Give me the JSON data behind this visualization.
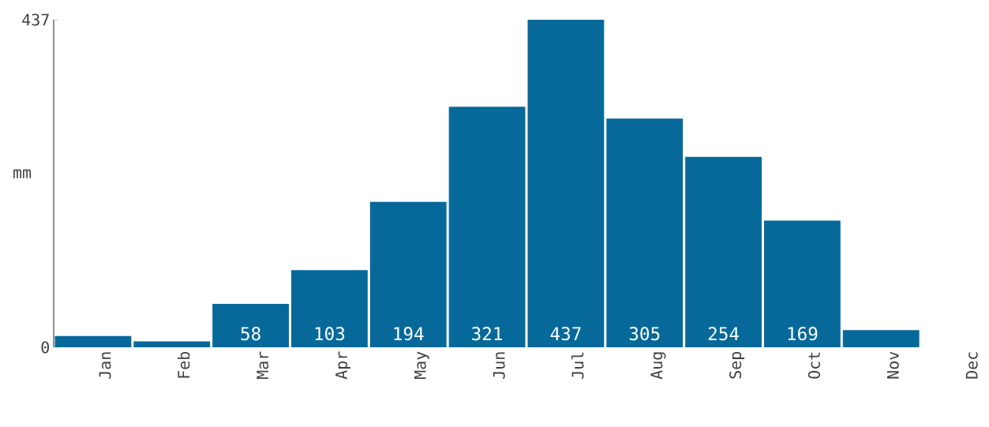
{
  "chart_data": {
    "type": "bar",
    "ylabel": "mm",
    "categories": [
      "Jan",
      "Feb",
      "Mar",
      "Apr",
      "May",
      "Jun",
      "Jul",
      "Aug",
      "Sep",
      "Oct",
      "Nov",
      "Dec"
    ],
    "values": [
      15,
      8,
      58,
      103,
      194,
      321,
      437,
      305,
      254,
      169,
      23,
      0
    ],
    "value_labels": [
      null,
      null,
      "58",
      "103",
      "194",
      "321",
      "437",
      "305",
      "254",
      "169",
      null,
      null
    ],
    "color": "#07699a",
    "ylim": [
      0,
      437
    ],
    "yticks": [
      0,
      437
    ]
  }
}
